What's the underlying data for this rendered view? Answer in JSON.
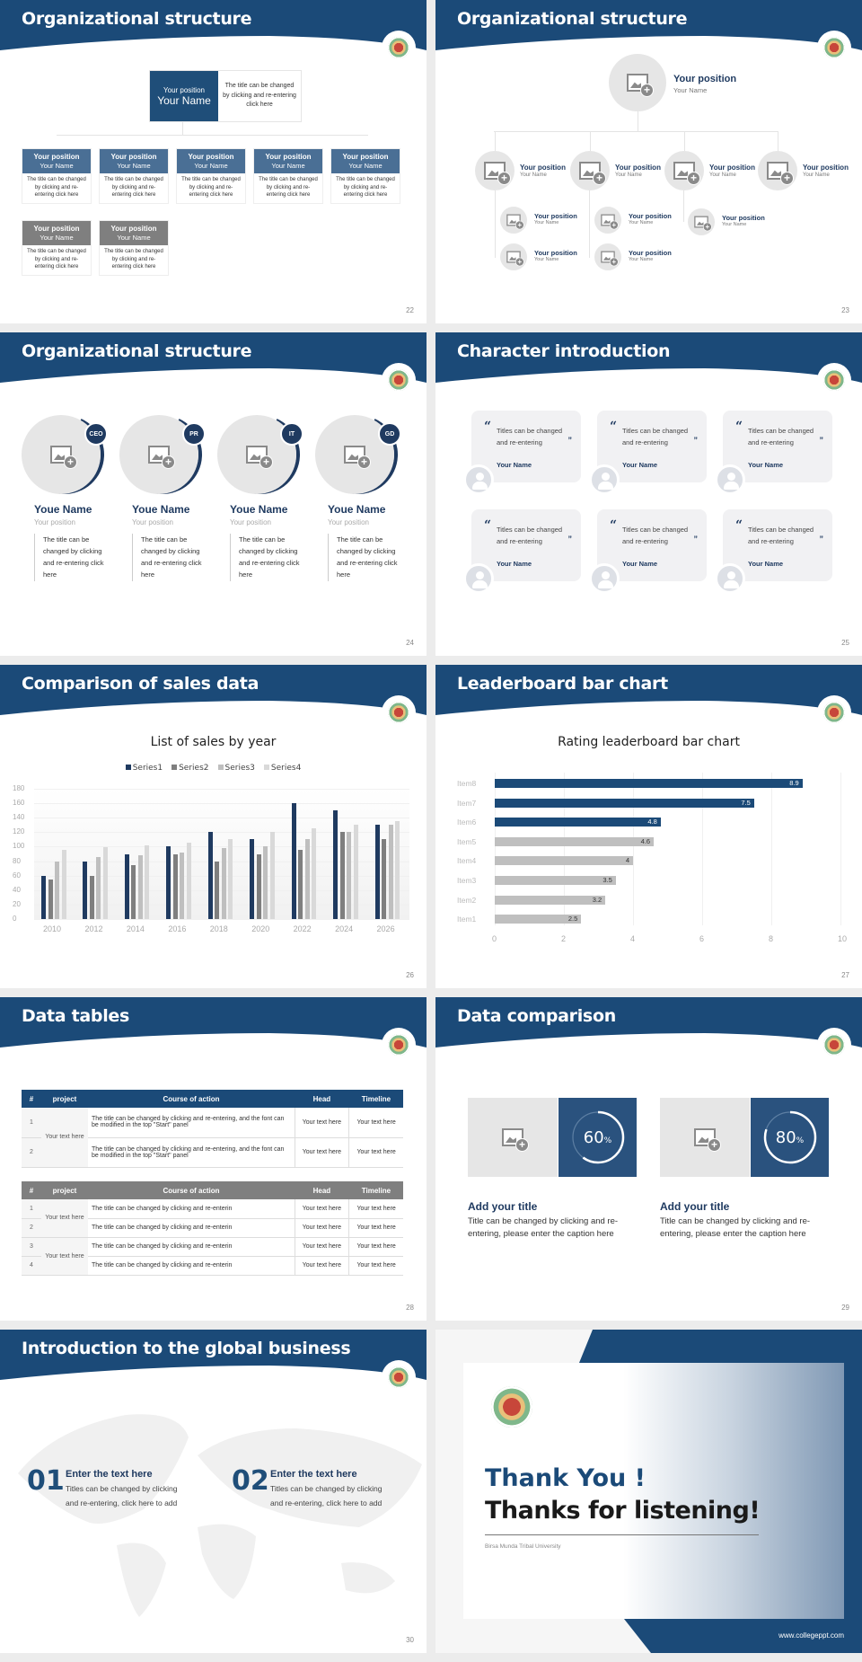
{
  "colors": {
    "primary": "#1f4e79",
    "dark_navy": "#1f3a60",
    "grey_box": "#7f7f7f",
    "placeholder": "#e6e6e6"
  },
  "slides": [
    {
      "page": "22",
      "title": "Organizational structure",
      "top": {
        "position": "Your position",
        "name": "Your Name",
        "desc": "The title can be changed by clicking and re-entering click here"
      },
      "boxes": [
        {
          "position": "Your position",
          "name": "Your Name",
          "desc": "The title can be changed by clicking and re-entering click here"
        },
        {
          "position": "Your position",
          "name": "Your Name",
          "desc": "The title can be changed by clicking and re-entering click here"
        },
        {
          "position": "Your position",
          "name": "Your Name",
          "desc": "The title can be changed by clicking and re-entering click here"
        },
        {
          "position": "Your position",
          "name": "Your Name",
          "desc": "The title can be changed by clicking and re-entering click here"
        },
        {
          "position": "Your position",
          "name": "Your Name",
          "desc": "The title can be changed by clicking and re-entering click here"
        },
        {
          "position": "Your position",
          "name": "Your Name",
          "desc": "The title can be changed by clicking and re-entering click here"
        },
        {
          "position": "Your position",
          "name": "Your Name",
          "desc": "The title can be changed by clicking and re-entering click here"
        }
      ]
    },
    {
      "page": "23",
      "title": "Organizational structure",
      "top": {
        "position": "Your position",
        "name": "Your Name"
      },
      "nodes": [
        {
          "position": "Your position",
          "name": "Your Name"
        },
        {
          "position": "Your position",
          "name": "Your Name"
        },
        {
          "position": "Your position",
          "name": "Your Name"
        },
        {
          "position": "Your position",
          "name": "Your Name"
        },
        {
          "position": "Your position",
          "name": "Your Name"
        },
        {
          "position": "Your position",
          "name": "Your Name"
        },
        {
          "position": "Your position",
          "name": "Your Name"
        },
        {
          "position": "Your position",
          "name": "Your Name"
        },
        {
          "position": "Your position",
          "name": "Your Name"
        }
      ]
    },
    {
      "page": "24",
      "title": "Organizational structure",
      "people": [
        {
          "badge": "CEO",
          "name": "Youe Name",
          "position": "Your position",
          "desc": "The title can be changed by clicking and re-entering click here"
        },
        {
          "badge": "PR",
          "name": "Youe Name",
          "position": "Your position",
          "desc": "The title can be changed by clicking and re-entering click here"
        },
        {
          "badge": "IT",
          "name": "Youe Name",
          "position": "Your position",
          "desc": "The title can be changed by clicking and re-entering click here"
        },
        {
          "badge": "GD",
          "name": "Youe Name",
          "position": "Your position",
          "desc": "The title can be changed by clicking and re-entering click here"
        }
      ]
    },
    {
      "page": "25",
      "title": "Character introduction",
      "cards": [
        {
          "text": "Titles can be changed and re-entering",
          "name": "Your Name"
        },
        {
          "text": "Titles can be changed and re-entering",
          "name": "Your Name"
        },
        {
          "text": "Titles can be changed and re-entering",
          "name": "Your Name"
        },
        {
          "text": "Titles can be changed and re-entering",
          "name": "Your Name"
        },
        {
          "text": "Titles can be changed and re-entering",
          "name": "Your Name"
        },
        {
          "text": "Titles can be changed and re-entering",
          "name": "Your Name"
        }
      ],
      "open_quote": "“",
      "close_quote": "”"
    },
    {
      "page": "26",
      "title": "Comparison of sales data"
    },
    {
      "page": "27",
      "title": "Leaderboard bar chart"
    },
    {
      "page": "28",
      "title": "Data tables",
      "headers": [
        "#",
        "project",
        "Course of action",
        "Head",
        "Timeline"
      ],
      "table1": [
        {
          "num": "1",
          "project": "Your text here",
          "action": "The title can be changed by clicking and re-entering, and the font can be modified in the top \"Start\" panel",
          "head": "Your text here",
          "timeline": "Your text here"
        },
        {
          "num": "2",
          "project": "",
          "action": "The title can be changed by clicking and re-entering, and the font can be modified in the top \"Start\" panel",
          "head": "Your text here",
          "timeline": "Your text here"
        }
      ],
      "table2": [
        {
          "num": "1",
          "project": "Your text here",
          "action": "The title can be changed by clicking and re-enterin",
          "head": "Your text here",
          "timeline": "Your text here"
        },
        {
          "num": "2",
          "project": "",
          "action": "The title can be changed by clicking and re-enterin",
          "head": "Your text here",
          "timeline": "Your text here"
        },
        {
          "num": "3",
          "project": "Your text here",
          "action": "The title can be changed by clicking and re-enterin",
          "head": "Your text here",
          "timeline": "Your text here"
        },
        {
          "num": "4",
          "project": "",
          "action": "The title can be changed by clicking and re-enterin",
          "head": "Your text here",
          "timeline": "Your text here"
        }
      ]
    },
    {
      "page": "29",
      "title": "Data comparison",
      "items": [
        {
          "percent": "60",
          "unit": "%",
          "title": "Add your title",
          "text": "Title can be changed by clicking and re-entering, please enter the caption here"
        },
        {
          "percent": "80",
          "unit": "%",
          "title": "Add your title",
          "text": "Title can be changed by clicking and re-entering, please enter the caption here"
        }
      ]
    },
    {
      "page": "30",
      "title": "Introduction to the global business",
      "items": [
        {
          "num": "01",
          "heading": "Enter the text here",
          "text": "Titles can be changed by clicking and re-entering, click here to add"
        },
        {
          "num": "02",
          "heading": "Enter the text here",
          "text": "Titles can be changed by clicking and re-entering, click here to add"
        }
      ]
    },
    {
      "title1": "Thank You !",
      "title2": "Thanks for listening!",
      "university": "Birsa Munda Tribal University",
      "website": "www.collegeppt.com"
    }
  ],
  "chart_data": [
    {
      "type": "bar",
      "title": "List of sales by year",
      "categories": [
        "2010",
        "2012",
        "2014",
        "2016",
        "2018",
        "2020",
        "2022",
        "2024",
        "2026"
      ],
      "series": [
        {
          "name": "Series1",
          "color": "#1f3a60",
          "values": [
            60,
            80,
            90,
            100,
            120,
            110,
            160,
            150,
            130
          ]
        },
        {
          "name": "Series2",
          "color": "#7f7f7f",
          "values": [
            55,
            60,
            75,
            90,
            80,
            90,
            96,
            120,
            110
          ]
        },
        {
          "name": "Series3",
          "color": "#bfbfbf",
          "values": [
            80,
            86,
            88,
            92,
            98,
            100,
            110,
            120,
            130
          ]
        },
        {
          "name": "Series4",
          "color": "#d9d9d9",
          "values": [
            95,
            99,
            102,
            105,
            110,
            120,
            126,
            130,
            135
          ]
        }
      ],
      "yticks": [
        "0",
        "20",
        "40",
        "60",
        "80",
        "100",
        "120",
        "140",
        "160",
        "180"
      ],
      "ylim": [
        0,
        180
      ],
      "legend_position": "top",
      "grid": true,
      "xlabel": "",
      "ylabel": ""
    },
    {
      "type": "bar",
      "orientation": "horizontal",
      "title": "Rating leaderboard bar chart",
      "categories": [
        "Item8",
        "Item7",
        "Item6",
        "Item5",
        "Item4",
        "Item3",
        "Item2",
        "Item1"
      ],
      "values": [
        8.9,
        7.5,
        4.8,
        4.6,
        4,
        3.5,
        3.2,
        2.5
      ],
      "labels": [
        "8.9",
        "7.5",
        "4.8",
        "4.6",
        "4",
        "3.5",
        "3.2",
        "2.5"
      ],
      "highlight_top": 3,
      "xticks": [
        "0",
        "2",
        "4",
        "6",
        "8",
        "10"
      ],
      "xlim": [
        0,
        10
      ],
      "grid": true,
      "xlabel": "",
      "ylabel": ""
    }
  ]
}
